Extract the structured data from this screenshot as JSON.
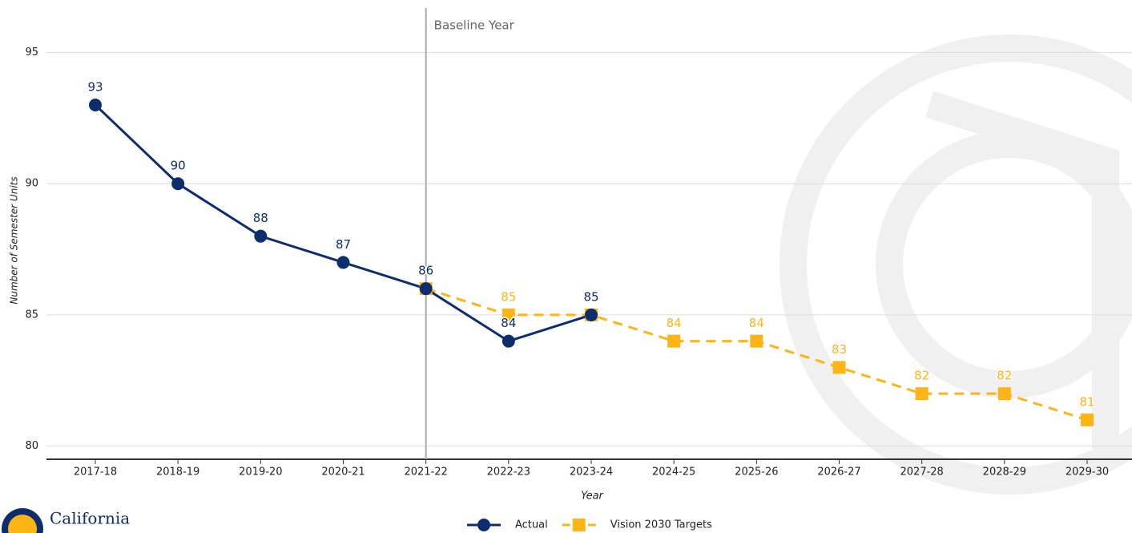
{
  "chart_data": {
    "type": "line",
    "categories": [
      "2017-18",
      "2018-19",
      "2019-20",
      "2020-21",
      "2021-22",
      "2022-23",
      "2023-24",
      "2024-25",
      "2025-26",
      "2026-27",
      "2027-28",
      "2028-29",
      "2029-30"
    ],
    "series": [
      {
        "name": "Actual",
        "color": "#0d2d6c",
        "marker": "circle",
        "dash": false,
        "values": [
          93,
          90,
          88,
          87,
          86,
          84,
          85,
          null,
          null,
          null,
          null,
          null,
          null
        ]
      },
      {
        "name": "Vision 2030 Targets",
        "color": "#fdb515",
        "marker": "square",
        "dash": true,
        "values": [
          null,
          null,
          null,
          null,
          86,
          85,
          85,
          84,
          84,
          83,
          82,
          82,
          81
        ]
      }
    ],
    "ylim": [
      79.5,
      97
    ],
    "yticks": [
      80,
      85,
      90,
      95
    ],
    "grid": true,
    "y_label": "Number of Semester Units",
    "x_label": "Year",
    "baseline": {
      "label": "Baseline Year",
      "at": "2021-22"
    },
    "legend": "bottom"
  },
  "logo": {
    "text": "California"
  }
}
